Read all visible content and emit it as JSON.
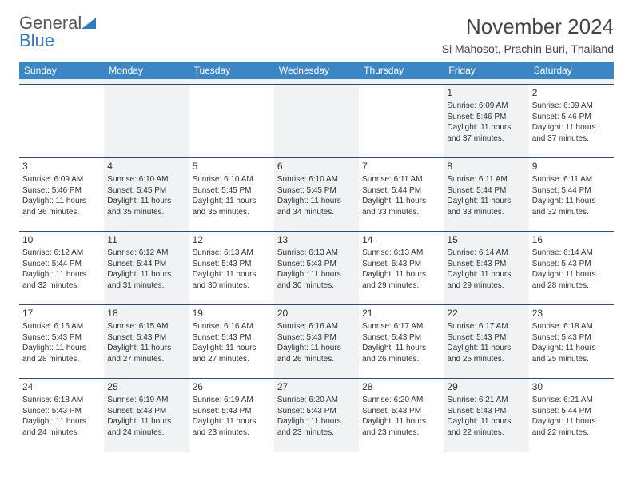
{
  "brand": {
    "part1": "General",
    "part2": "Blue"
  },
  "title": "November 2024",
  "location": "Si Mahosot, Prachin Buri, Thailand",
  "daysOfWeek": [
    "Sunday",
    "Monday",
    "Tuesday",
    "Wednesday",
    "Thursday",
    "Friday",
    "Saturday"
  ],
  "colors": {
    "headerBar": "#3d86c6",
    "shade": "#f0f2f4",
    "rule": "#2f4f6f",
    "brandBlue": "#2f7bbf",
    "text": "#333333"
  },
  "typography": {
    "title_fontsize": 26,
    "location_fontsize": 14,
    "dow_fontsize": 12,
    "daynum_fontsize": 12,
    "body_fontsize": 10
  },
  "labels": {
    "sunrise": "Sunrise: ",
    "sunset": "Sunset: ",
    "daylight_prefix": "Daylight: ",
    "daylight_mid": " hours and ",
    "daylight_suffix": " minutes."
  },
  "weeks": [
    [
      {
        "n": "",
        "sr": "",
        "ss": "",
        "dh": "",
        "dm": ""
      },
      {
        "n": "",
        "sr": "",
        "ss": "",
        "dh": "",
        "dm": ""
      },
      {
        "n": "",
        "sr": "",
        "ss": "",
        "dh": "",
        "dm": ""
      },
      {
        "n": "",
        "sr": "",
        "ss": "",
        "dh": "",
        "dm": ""
      },
      {
        "n": "",
        "sr": "",
        "ss": "",
        "dh": "",
        "dm": ""
      },
      {
        "n": "1",
        "sr": "6:09 AM",
        "ss": "5:46 PM",
        "dh": "11",
        "dm": "37"
      },
      {
        "n": "2",
        "sr": "6:09 AM",
        "ss": "5:46 PM",
        "dh": "11",
        "dm": "37"
      }
    ],
    [
      {
        "n": "3",
        "sr": "6:09 AM",
        "ss": "5:46 PM",
        "dh": "11",
        "dm": "36"
      },
      {
        "n": "4",
        "sr": "6:10 AM",
        "ss": "5:45 PM",
        "dh": "11",
        "dm": "35"
      },
      {
        "n": "5",
        "sr": "6:10 AM",
        "ss": "5:45 PM",
        "dh": "11",
        "dm": "35"
      },
      {
        "n": "6",
        "sr": "6:10 AM",
        "ss": "5:45 PM",
        "dh": "11",
        "dm": "34"
      },
      {
        "n": "7",
        "sr": "6:11 AM",
        "ss": "5:44 PM",
        "dh": "11",
        "dm": "33"
      },
      {
        "n": "8",
        "sr": "6:11 AM",
        "ss": "5:44 PM",
        "dh": "11",
        "dm": "33"
      },
      {
        "n": "9",
        "sr": "6:11 AM",
        "ss": "5:44 PM",
        "dh": "11",
        "dm": "32"
      }
    ],
    [
      {
        "n": "10",
        "sr": "6:12 AM",
        "ss": "5:44 PM",
        "dh": "11",
        "dm": "32"
      },
      {
        "n": "11",
        "sr": "6:12 AM",
        "ss": "5:44 PM",
        "dh": "11",
        "dm": "31"
      },
      {
        "n": "12",
        "sr": "6:13 AM",
        "ss": "5:43 PM",
        "dh": "11",
        "dm": "30"
      },
      {
        "n": "13",
        "sr": "6:13 AM",
        "ss": "5:43 PM",
        "dh": "11",
        "dm": "30"
      },
      {
        "n": "14",
        "sr": "6:13 AM",
        "ss": "5:43 PM",
        "dh": "11",
        "dm": "29"
      },
      {
        "n": "15",
        "sr": "6:14 AM",
        "ss": "5:43 PM",
        "dh": "11",
        "dm": "29"
      },
      {
        "n": "16",
        "sr": "6:14 AM",
        "ss": "5:43 PM",
        "dh": "11",
        "dm": "28"
      }
    ],
    [
      {
        "n": "17",
        "sr": "6:15 AM",
        "ss": "5:43 PM",
        "dh": "11",
        "dm": "28"
      },
      {
        "n": "18",
        "sr": "6:15 AM",
        "ss": "5:43 PM",
        "dh": "11",
        "dm": "27"
      },
      {
        "n": "19",
        "sr": "6:16 AM",
        "ss": "5:43 PM",
        "dh": "11",
        "dm": "27"
      },
      {
        "n": "20",
        "sr": "6:16 AM",
        "ss": "5:43 PM",
        "dh": "11",
        "dm": "26"
      },
      {
        "n": "21",
        "sr": "6:17 AM",
        "ss": "5:43 PM",
        "dh": "11",
        "dm": "26"
      },
      {
        "n": "22",
        "sr": "6:17 AM",
        "ss": "5:43 PM",
        "dh": "11",
        "dm": "25"
      },
      {
        "n": "23",
        "sr": "6:18 AM",
        "ss": "5:43 PM",
        "dh": "11",
        "dm": "25"
      }
    ],
    [
      {
        "n": "24",
        "sr": "6:18 AM",
        "ss": "5:43 PM",
        "dh": "11",
        "dm": "24"
      },
      {
        "n": "25",
        "sr": "6:19 AM",
        "ss": "5:43 PM",
        "dh": "11",
        "dm": "24"
      },
      {
        "n": "26",
        "sr": "6:19 AM",
        "ss": "5:43 PM",
        "dh": "11",
        "dm": "23"
      },
      {
        "n": "27",
        "sr": "6:20 AM",
        "ss": "5:43 PM",
        "dh": "11",
        "dm": "23"
      },
      {
        "n": "28",
        "sr": "6:20 AM",
        "ss": "5:43 PM",
        "dh": "11",
        "dm": "23"
      },
      {
        "n": "29",
        "sr": "6:21 AM",
        "ss": "5:43 PM",
        "dh": "11",
        "dm": "22"
      },
      {
        "n": "30",
        "sr": "6:21 AM",
        "ss": "5:44 PM",
        "dh": "11",
        "dm": "22"
      }
    ]
  ]
}
